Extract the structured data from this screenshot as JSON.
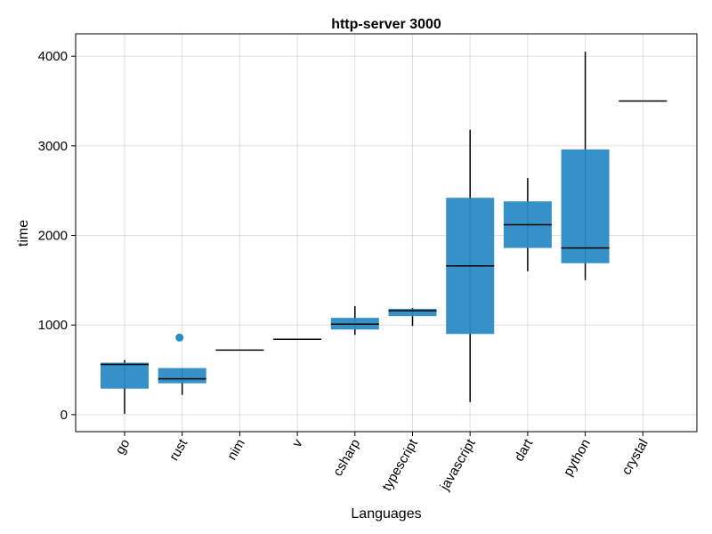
{
  "chart_data": {
    "type": "box",
    "title": "http-server 3000",
    "xlabel": "Languages",
    "ylabel": "time",
    "ylim": [
      -190,
      4250
    ],
    "yticks": [
      0,
      1000,
      2000,
      3000,
      4000
    ],
    "grid": true,
    "box_color": "#2a8bc4",
    "line_color": "#000000",
    "categories": [
      "go",
      "rust",
      "nim",
      "v",
      "csharp",
      "typescript",
      "javascript",
      "dart",
      "python",
      "crystal"
    ],
    "boxes": [
      {
        "category": "go",
        "whisker_low": 10,
        "q1": 290,
        "median": 560,
        "q3": 580,
        "whisker_high": 610,
        "outliers": []
      },
      {
        "category": "rust",
        "whisker_low": 220,
        "q1": 350,
        "median": 400,
        "q3": 520,
        "whisker_high": 520,
        "outliers": [
          860
        ]
      },
      {
        "category": "nim",
        "whisker_low": 720,
        "q1": 720,
        "median": 720,
        "q3": 720,
        "whisker_high": 720,
        "outliers": []
      },
      {
        "category": "v",
        "whisker_low": 840,
        "q1": 840,
        "median": 840,
        "q3": 840,
        "whisker_high": 840,
        "outliers": []
      },
      {
        "category": "csharp",
        "whisker_low": 890,
        "q1": 950,
        "median": 1010,
        "q3": 1080,
        "whisker_high": 1210,
        "outliers": []
      },
      {
        "category": "typescript",
        "whisker_low": 990,
        "q1": 1100,
        "median": 1160,
        "q3": 1180,
        "whisker_high": 1190,
        "outliers": []
      },
      {
        "category": "javascript",
        "whisker_low": 140,
        "q1": 900,
        "median": 1660,
        "q3": 2420,
        "whisker_high": 3180,
        "outliers": []
      },
      {
        "category": "dart",
        "whisker_low": 1600,
        "q1": 1860,
        "median": 2120,
        "q3": 2380,
        "whisker_high": 2640,
        "outliers": []
      },
      {
        "category": "python",
        "whisker_low": 1500,
        "q1": 1690,
        "median": 1860,
        "q3": 2960,
        "whisker_high": 4050,
        "outliers": []
      },
      {
        "category": "crystal",
        "whisker_low": 3500,
        "q1": 3500,
        "median": 3500,
        "q3": 3500,
        "whisker_high": 3500,
        "outliers": []
      }
    ]
  }
}
